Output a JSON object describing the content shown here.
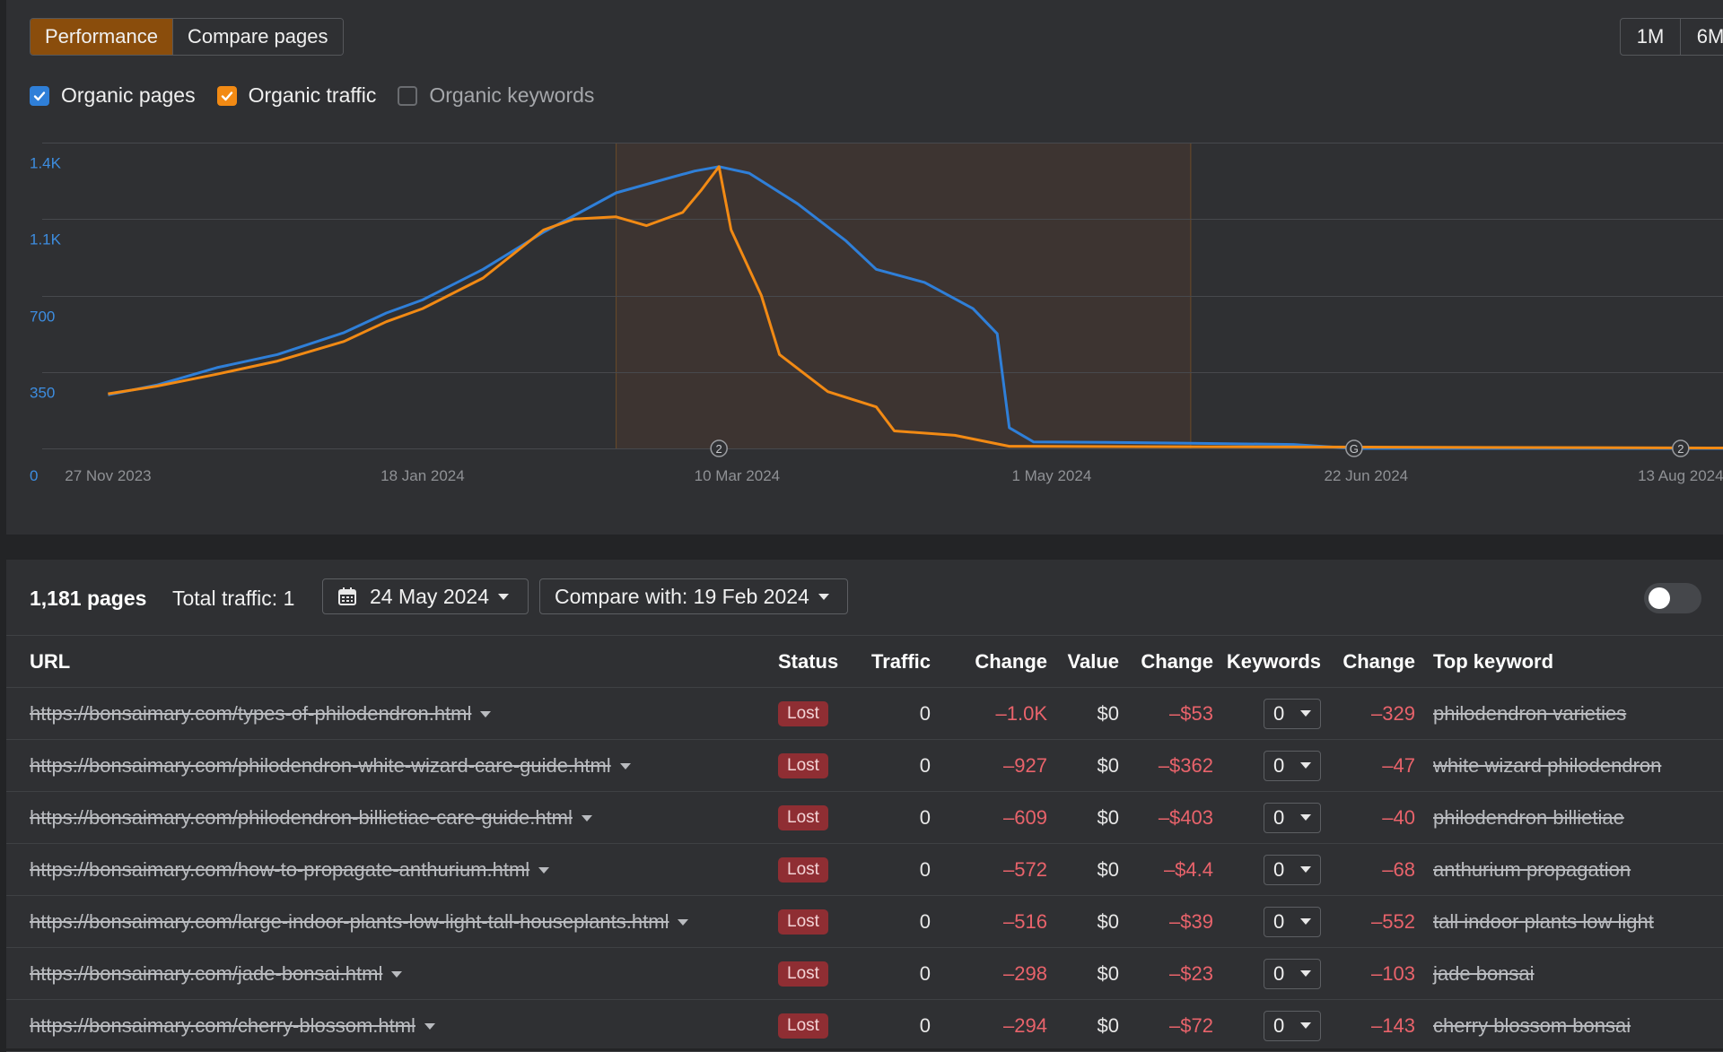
{
  "tabs": [
    {
      "label": "Performance",
      "active": true
    },
    {
      "label": "Compare pages",
      "active": false
    }
  ],
  "periods": [
    "1M",
    "6M"
  ],
  "metrics": [
    {
      "label": "Organic pages",
      "checked": true,
      "color": "#2f7fd8"
    },
    {
      "label": "Organic traffic",
      "checked": true,
      "color": "#f28a14"
    },
    {
      "label": "Organic keywords",
      "checked": false,
      "color": "#6a6c70"
    }
  ],
  "chart_data": {
    "type": "line",
    "y_ticks": [
      "0",
      "350",
      "700",
      "1.1K",
      "1.4K"
    ],
    "ylim": [
      0,
      1400
    ],
    "x_ticks": [
      {
        "label": "27 Nov 2023",
        "x": "2023-11-27"
      },
      {
        "label": "18 Jan 2024",
        "x": "2024-01-18"
      },
      {
        "label": "10 Mar 2024",
        "x": "2024-03-10"
      },
      {
        "label": "1 May 2024",
        "x": "2024-05-01"
      },
      {
        "label": "22 Jun 2024",
        "x": "2024-06-22"
      },
      {
        "label": "13 Aug 2024",
        "x": "2024-08-13"
      }
    ],
    "xlim": [
      "2023-11-21",
      "2024-08-20"
    ],
    "highlight_range": [
      "2024-02-19",
      "2024-05-24"
    ],
    "annotations": [
      {
        "x": "2024-03-07",
        "label": "2"
      },
      {
        "x": "2024-06-20",
        "label": "G"
      },
      {
        "x": "2024-08-13",
        "label": "2"
      }
    ],
    "series": [
      {
        "name": "Organic pages",
        "color": "#2f7fd8",
        "points": [
          [
            "2023-11-27",
            245
          ],
          [
            "2023-12-05",
            290
          ],
          [
            "2023-12-15",
            370
          ],
          [
            "2023-12-25",
            430
          ],
          [
            "2024-01-05",
            530
          ],
          [
            "2024-01-12",
            620
          ],
          [
            "2024-01-18",
            680
          ],
          [
            "2024-01-28",
            820
          ],
          [
            "2024-02-07",
            990
          ],
          [
            "2024-02-19",
            1170
          ],
          [
            "2024-02-28",
            1240
          ],
          [
            "2024-03-03",
            1270
          ],
          [
            "2024-03-07",
            1290
          ],
          [
            "2024-03-12",
            1260
          ],
          [
            "2024-03-20",
            1120
          ],
          [
            "2024-03-28",
            950
          ],
          [
            "2024-04-02",
            820
          ],
          [
            "2024-04-10",
            760
          ],
          [
            "2024-04-18",
            640
          ],
          [
            "2024-04-22",
            525
          ],
          [
            "2024-04-24",
            95
          ],
          [
            "2024-04-28",
            30
          ],
          [
            "2024-05-10",
            28
          ],
          [
            "2024-05-24",
            24
          ],
          [
            "2024-06-10",
            18
          ],
          [
            "2024-06-20",
            0
          ],
          [
            "2024-08-20",
            0
          ]
        ]
      },
      {
        "name": "Organic traffic",
        "color": "#f28a14",
        "points": [
          [
            "2023-11-27",
            250
          ],
          [
            "2023-12-05",
            285
          ],
          [
            "2023-12-15",
            340
          ],
          [
            "2023-12-25",
            400
          ],
          [
            "2024-01-05",
            490
          ],
          [
            "2024-01-12",
            580
          ],
          [
            "2024-01-18",
            640
          ],
          [
            "2024-01-28",
            780
          ],
          [
            "2024-02-07",
            1000
          ],
          [
            "2024-02-12",
            1050
          ],
          [
            "2024-02-19",
            1060
          ],
          [
            "2024-02-24",
            1020
          ],
          [
            "2024-03-01",
            1080
          ],
          [
            "2024-03-04",
            1180
          ],
          [
            "2024-03-07",
            1290
          ],
          [
            "2024-03-09",
            1000
          ],
          [
            "2024-03-14",
            700
          ],
          [
            "2024-03-17",
            430
          ],
          [
            "2024-03-25",
            260
          ],
          [
            "2024-04-02",
            190
          ],
          [
            "2024-04-05",
            80
          ],
          [
            "2024-04-15",
            60
          ],
          [
            "2024-04-24",
            10
          ],
          [
            "2024-08-20",
            2
          ]
        ]
      }
    ]
  },
  "table": {
    "pages_count": "1,181 pages",
    "total_traffic": "Total traffic: 1",
    "date_label": "24 May 2024",
    "compare_label": "Compare with: 19 Feb 2024",
    "columns": [
      "URL",
      "Status",
      "Traffic",
      "Change",
      "Value",
      "Change",
      "Keywords",
      "Change",
      "Top keyword"
    ],
    "rows": [
      {
        "url": "https://bonsaimary.com/types-of-philodendron.html",
        "status": "Lost",
        "traffic": "0",
        "traffic_change": "–1.0K",
        "value": "$0",
        "value_change": "–$53",
        "keywords": "0",
        "kw_change": "–329",
        "top_keyword": "philodendron varieties"
      },
      {
        "url": "https://bonsaimary.com/philodendron-white-wizard-care-guide.html",
        "status": "Lost",
        "traffic": "0",
        "traffic_change": "–927",
        "value": "$0",
        "value_change": "–$362",
        "keywords": "0",
        "kw_change": "–47",
        "top_keyword": "white wizard philodendron"
      },
      {
        "url": "https://bonsaimary.com/philodendron-billietiae-care-guide.html",
        "status": "Lost",
        "traffic": "0",
        "traffic_change": "–609",
        "value": "$0",
        "value_change": "–$403",
        "keywords": "0",
        "kw_change": "–40",
        "top_keyword": "philodendron billietiae"
      },
      {
        "url": "https://bonsaimary.com/how-to-propagate-anthurium.html",
        "status": "Lost",
        "traffic": "0",
        "traffic_change": "–572",
        "value": "$0",
        "value_change": "–$4.4",
        "keywords": "0",
        "kw_change": "–68",
        "top_keyword": "anthurium propagation"
      },
      {
        "url": "https://bonsaimary.com/large-indoor-plants-low-light-tall-houseplants.html",
        "status": "Lost",
        "traffic": "0",
        "traffic_change": "–516",
        "value": "$0",
        "value_change": "–$39",
        "keywords": "0",
        "kw_change": "–552",
        "top_keyword": "tall indoor plants low light"
      },
      {
        "url": "https://bonsaimary.com/jade-bonsai.html",
        "status": "Lost",
        "traffic": "0",
        "traffic_change": "–298",
        "value": "$0",
        "value_change": "–$23",
        "keywords": "0",
        "kw_change": "–103",
        "top_keyword": "jade bonsai"
      },
      {
        "url": "https://bonsaimary.com/cherry-blossom.html",
        "status": "Lost",
        "traffic": "0",
        "traffic_change": "–294",
        "value": "$0",
        "value_change": "–$72",
        "keywords": "0",
        "kw_change": "–143",
        "top_keyword": "cherry blossom bonsai"
      }
    ]
  }
}
